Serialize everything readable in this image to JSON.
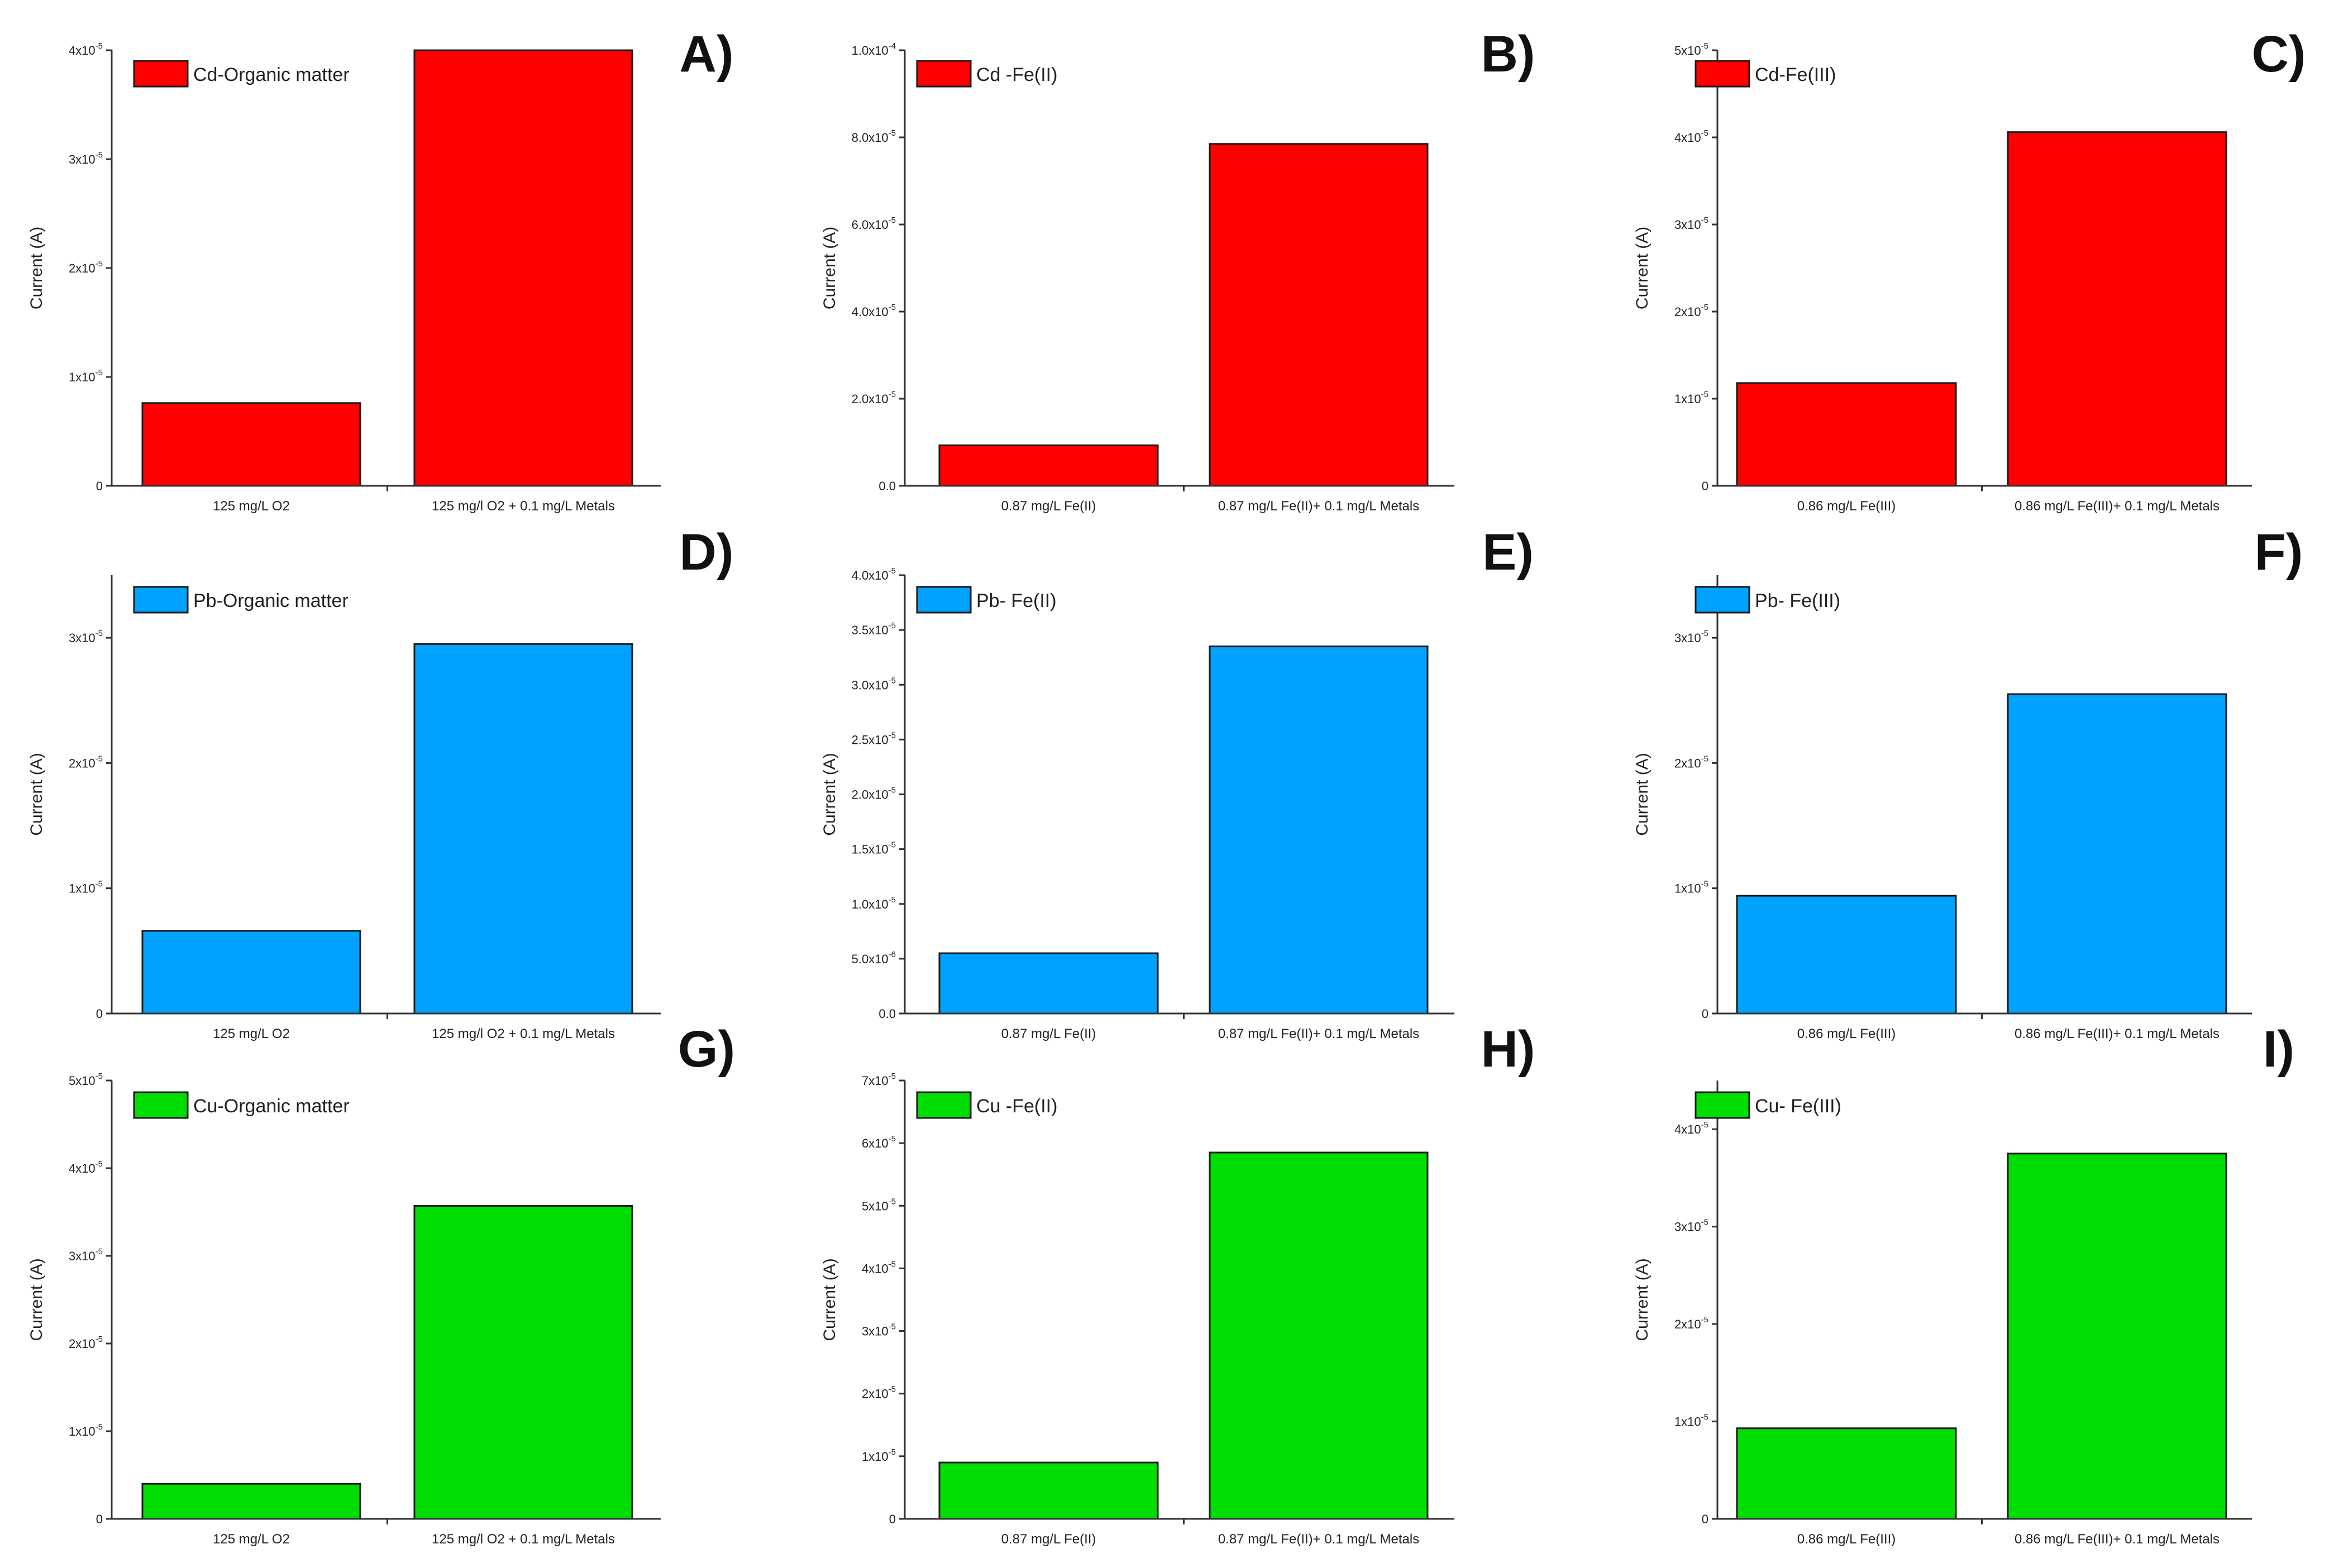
{
  "chart_data": [
    {
      "panel": "A)",
      "type": "bar",
      "legend": "Cd-Organic matter",
      "color": "#ff0000",
      "ylabel": "Current (A)",
      "categories": [
        "125 mg/L O2",
        "125 mg/l O2 + 0.1 mg/L Metals"
      ],
      "values": [
        7.6e-06,
        4e-05
      ],
      "ylim": [
        0,
        4e-05
      ],
      "yticks": [
        0,
        1e-05,
        2e-05,
        3e-05,
        4e-05
      ],
      "yticklabels": [
        {
          "m": "0",
          "e": ""
        },
        {
          "m": "1x10",
          "e": "-5"
        },
        {
          "m": "2x10",
          "e": "-5"
        },
        {
          "m": "3x10",
          "e": "-5"
        },
        {
          "m": "4x10",
          "e": "-5"
        }
      ]
    },
    {
      "panel": "B)",
      "type": "bar",
      "legend": "Cd -Fe(II)",
      "color": "#ff0000",
      "ylabel": "Current (A)",
      "categories": [
        "0.87 mg/L Fe(II)",
        "0.87 mg/L Fe(II)+ 0.1 mg/L Metals"
      ],
      "values": [
        9.3e-06,
        7.85e-05
      ],
      "ylim": [
        0,
        0.0001
      ],
      "yticks": [
        0,
        2e-05,
        4e-05,
        6e-05,
        8e-05,
        0.0001
      ],
      "yticklabels": [
        {
          "m": "0.0",
          "e": ""
        },
        {
          "m": "2.0x10",
          "e": "-5"
        },
        {
          "m": "4.0x10",
          "e": "-5"
        },
        {
          "m": "6.0x10",
          "e": "-5"
        },
        {
          "m": "8.0x10",
          "e": "-5"
        },
        {
          "m": "1.0x10",
          "e": "-4"
        }
      ]
    },
    {
      "panel": "C)",
      "type": "bar",
      "legend": "Cd-Fe(III)",
      "color": "#ff0000",
      "ylabel": "Current (A)",
      "categories": [
        "0.86 mg/L Fe(III)",
        "0.86 mg/L Fe(III)+ 0.1 mg/L Metals"
      ],
      "values": [
        1.18e-05,
        4.06e-05
      ],
      "ylim": [
        0,
        5e-05
      ],
      "yticks": [
        0,
        1e-05,
        2e-05,
        3e-05,
        4e-05,
        5e-05
      ],
      "yticklabels": [
        {
          "m": "0",
          "e": ""
        },
        {
          "m": "1x10",
          "e": "-5"
        },
        {
          "m": "2x10",
          "e": "-5"
        },
        {
          "m": "3x10",
          "e": "-5"
        },
        {
          "m": "4x10",
          "e": "-5"
        },
        {
          "m": "5x10",
          "e": "-5"
        }
      ]
    },
    {
      "panel": "D)",
      "type": "bar",
      "legend": "Pb-Organic matter",
      "color": "#00a2ff",
      "ylabel": "Current (A)",
      "categories": [
        "125 mg/L O2",
        "125 mg/l O2 + 0.1 mg/L Metals"
      ],
      "values": [
        6.6e-06,
        2.95e-05
      ],
      "ylim": [
        0,
        3.5e-05
      ],
      "yticks": [
        0,
        1e-05,
        2e-05,
        3e-05
      ],
      "yticklabels": [
        {
          "m": "0",
          "e": ""
        },
        {
          "m": "1x10",
          "e": "-5"
        },
        {
          "m": "2x10",
          "e": "-5"
        },
        {
          "m": "3x10",
          "e": "-5"
        }
      ]
    },
    {
      "panel": "E)",
      "type": "bar",
      "legend": "Pb- Fe(II)",
      "color": "#00a2ff",
      "ylabel": "Current (A)",
      "categories": [
        "0.87 mg/L Fe(II)",
        "0.87 mg/L Fe(II)+ 0.1 mg/L Metals"
      ],
      "values": [
        5.5e-06,
        3.35e-05
      ],
      "ylim": [
        0,
        4e-05
      ],
      "yticks": [
        0,
        5e-06,
        1e-05,
        1.5e-05,
        2e-05,
        2.5e-05,
        3e-05,
        3.5e-05,
        4e-05
      ],
      "yticklabels": [
        {
          "m": "0.0",
          "e": ""
        },
        {
          "m": "5.0x10",
          "e": "-6"
        },
        {
          "m": "1.0x10",
          "e": "-5"
        },
        {
          "m": "1.5x10",
          "e": "-5"
        },
        {
          "m": "2.0x10",
          "e": "-5"
        },
        {
          "m": "2.5x10",
          "e": "-5"
        },
        {
          "m": "3.0x10",
          "e": "-5"
        },
        {
          "m": "3.5x10",
          "e": "-5"
        },
        {
          "m": "4.0x10",
          "e": "-5"
        }
      ]
    },
    {
      "panel": "F)",
      "type": "bar",
      "legend": "Pb- Fe(III)",
      "color": "#00a2ff",
      "ylabel": "Current (A)",
      "categories": [
        "0.86 mg/L Fe(III)",
        "0.86 mg/L Fe(III)+ 0.1 mg/L Metals"
      ],
      "values": [
        9.4e-06,
        2.55e-05
      ],
      "ylim": [
        0,
        3.5e-05
      ],
      "yticks": [
        0,
        1e-05,
        2e-05,
        3e-05
      ],
      "yticklabels": [
        {
          "m": "0",
          "e": ""
        },
        {
          "m": "1x10",
          "e": "-5"
        },
        {
          "m": "2x10",
          "e": "-5"
        },
        {
          "m": "3x10",
          "e": "-5"
        }
      ]
    },
    {
      "panel": "G)",
      "type": "bar",
      "legend": "Cu-Organic matter",
      "color": "#00dd00",
      "ylabel": "Current (A)",
      "categories": [
        "125 mg/L O2",
        "125 mg/l O2 + 0.1 mg/L Metals"
      ],
      "values": [
        4e-06,
        3.57e-05
      ],
      "ylim": [
        0,
        5e-05
      ],
      "yticks": [
        0,
        1e-05,
        2e-05,
        3e-05,
        4e-05,
        5e-05
      ],
      "yticklabels": [
        {
          "m": "0",
          "e": ""
        },
        {
          "m": "1x10",
          "e": "-5"
        },
        {
          "m": "2x10",
          "e": "-5"
        },
        {
          "m": "3x10",
          "e": "-5"
        },
        {
          "m": "4x10",
          "e": "-5"
        },
        {
          "m": "5x10",
          "e": "-5"
        }
      ]
    },
    {
      "panel": "H)",
      "type": "bar",
      "legend": "Cu -Fe(II)",
      "color": "#00dd00",
      "ylabel": "Current (A)",
      "categories": [
        "0.87 mg/L Fe(II)",
        "0.87 mg/L Fe(II)+ 0.1 mg/L Metals"
      ],
      "values": [
        9e-06,
        5.85e-05
      ],
      "ylim": [
        0,
        7e-05
      ],
      "yticks": [
        0,
        1e-05,
        2e-05,
        3e-05,
        4e-05,
        5e-05,
        6e-05,
        7e-05
      ],
      "yticklabels": [
        {
          "m": "0",
          "e": ""
        },
        {
          "m": "1x10",
          "e": "-5"
        },
        {
          "m": "2x10",
          "e": "-5"
        },
        {
          "m": "3x10",
          "e": "-5"
        },
        {
          "m": "4x10",
          "e": "-5"
        },
        {
          "m": "5x10",
          "e": "-5"
        },
        {
          "m": "6x10",
          "e": "-5"
        },
        {
          "m": "7x10",
          "e": "-5"
        }
      ]
    },
    {
      "panel": "I)",
      "type": "bar",
      "legend": "Cu- Fe(III)",
      "color": "#00dd00",
      "ylabel": "Current (A)",
      "categories": [
        "0.86 mg/L Fe(III)",
        "0.86 mg/L Fe(III)+ 0.1 mg/L Metals"
      ],
      "values": [
        9.3e-06,
        3.75e-05
      ],
      "ylim": [
        0,
        4.5e-05
      ],
      "yticks": [
        0,
        1e-05,
        2e-05,
        3e-05,
        4e-05
      ],
      "yticklabels": [
        {
          "m": "0",
          "e": ""
        },
        {
          "m": "1x10",
          "e": "-5"
        },
        {
          "m": "2x10",
          "e": "-5"
        },
        {
          "m": "3x10",
          "e": "-5"
        },
        {
          "m": "4x10",
          "e": "-5"
        }
      ]
    }
  ]
}
